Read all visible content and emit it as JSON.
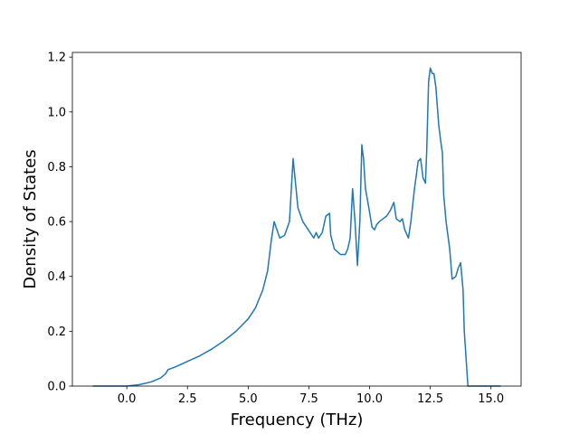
{
  "chart_data": {
    "type": "line",
    "x_label": "Frequency (THz)",
    "y_label": "Density of States",
    "x": [
      -1.4,
      -0.5,
      0,
      0.5,
      1.0,
      1.4,
      1.6,
      1.7,
      2.0,
      2.5,
      3.0,
      3.5,
      4.0,
      4.5,
      5.0,
      5.3,
      5.6,
      5.8,
      5.95,
      6.07,
      6.3,
      6.5,
      6.7,
      6.85,
      7.05,
      7.25,
      7.55,
      7.7,
      7.8,
      7.9,
      8.05,
      8.2,
      8.35,
      8.4,
      8.55,
      8.8,
      9.0,
      9.1,
      9.2,
      9.3,
      9.4,
      9.5,
      9.6,
      9.68,
      9.75,
      9.83,
      9.97,
      10.1,
      10.2,
      10.3,
      10.4,
      10.55,
      10.7,
      10.85,
      11.0,
      11.1,
      11.25,
      11.35,
      11.45,
      11.6,
      11.7,
      11.85,
      12.0,
      12.1,
      12.2,
      12.3,
      12.35,
      12.43,
      12.5,
      12.58,
      12.65,
      12.73,
      12.85,
      12.95,
      13.0,
      13.05,
      13.15,
      13.3,
      13.4,
      13.55,
      13.65,
      13.75,
      13.85,
      13.9,
      14.05,
      15.4
    ],
    "series": [
      {
        "color": "#1f77b4",
        "values": [
          0,
          0,
          0,
          0.005,
          0.015,
          0.03,
          0.045,
          0.06,
          0.07,
          0.09,
          0.11,
          0.135,
          0.165,
          0.2,
          0.245,
          0.285,
          0.35,
          0.42,
          0.53,
          0.6,
          0.54,
          0.55,
          0.6,
          0.83,
          0.65,
          0.6,
          0.56,
          0.54,
          0.56,
          0.54,
          0.56,
          0.62,
          0.63,
          0.55,
          0.5,
          0.48,
          0.48,
          0.5,
          0.54,
          0.72,
          0.6,
          0.44,
          0.6,
          0.88,
          0.83,
          0.72,
          0.65,
          0.58,
          0.57,
          0.59,
          0.6,
          0.61,
          0.62,
          0.64,
          0.67,
          0.61,
          0.6,
          0.61,
          0.57,
          0.54,
          0.6,
          0.72,
          0.82,
          0.83,
          0.76,
          0.74,
          0.85,
          1.11,
          1.16,
          1.14,
          1.14,
          1.09,
          0.95,
          0.88,
          0.85,
          0.7,
          0.6,
          0.5,
          0.39,
          0.4,
          0.43,
          0.45,
          0.35,
          0.2,
          0,
          0
        ]
      }
    ],
    "xlim": [
      -2.24,
      16.24
    ],
    "ylim": [
      0,
      1.217
    ],
    "xticks": [
      {
        "value": 0,
        "label": "0.0"
      },
      2.5,
      {
        "value": 5,
        "label": "5.0"
      },
      7.5,
      {
        "value": 10,
        "label": "10.0"
      },
      12.5,
      {
        "value": 15,
        "label": "15.0"
      }
    ],
    "yticks": [
      {
        "value": 0,
        "label": "0.0"
      },
      0.2,
      0.4,
      0.6,
      0.8,
      {
        "value": 1,
        "label": "1.0"
      },
      1.2
    ],
    "grid": false
  }
}
